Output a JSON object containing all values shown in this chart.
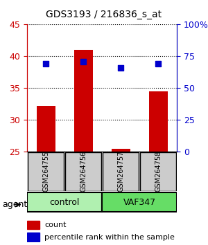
{
  "title": "GDS3193 / 216836_s_at",
  "samples": [
    "GSM264755",
    "GSM264756",
    "GSM264757",
    "GSM264758"
  ],
  "groups": [
    "control",
    "control",
    "VAF347",
    "VAF347"
  ],
  "count_values": [
    32.2,
    41.0,
    25.5,
    34.5
  ],
  "percentile_values": [
    69,
    71,
    66,
    69
  ],
  "ylim_left": [
    25,
    45
  ],
  "ylim_right": [
    0,
    100
  ],
  "yticks_left": [
    25,
    30,
    35,
    40,
    45
  ],
  "yticks_right": [
    0,
    25,
    50,
    75,
    100
  ],
  "ytick_labels_right": [
    "0",
    "25",
    "50",
    "75",
    "100%"
  ],
  "bar_color": "#cc0000",
  "dot_color": "#0000cc",
  "group_colors": {
    "control": "#90ee90",
    "VAF347": "#44cc44"
  },
  "control_color": "#b0f0b0",
  "vaf_color": "#66dd66",
  "sample_box_color": "#cccccc",
  "legend_count_color": "#cc0000",
  "legend_pct_color": "#0000cc"
}
